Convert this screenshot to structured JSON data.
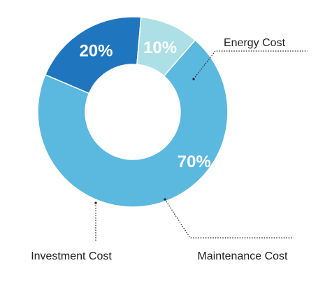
{
  "chart_data": {
    "type": "pie",
    "donut": true,
    "categories": [
      "Energy Cost",
      "Maintenance Cost",
      "Investment Cost"
    ],
    "values": [
      70,
      20,
      10
    ],
    "value_labels": [
      "70%",
      "20%",
      "10%"
    ],
    "colors": [
      "#5bb8df",
      "#1f76be",
      "#ace0e6"
    ],
    "legend": "callouts with dotted leader lines",
    "title": ""
  }
}
